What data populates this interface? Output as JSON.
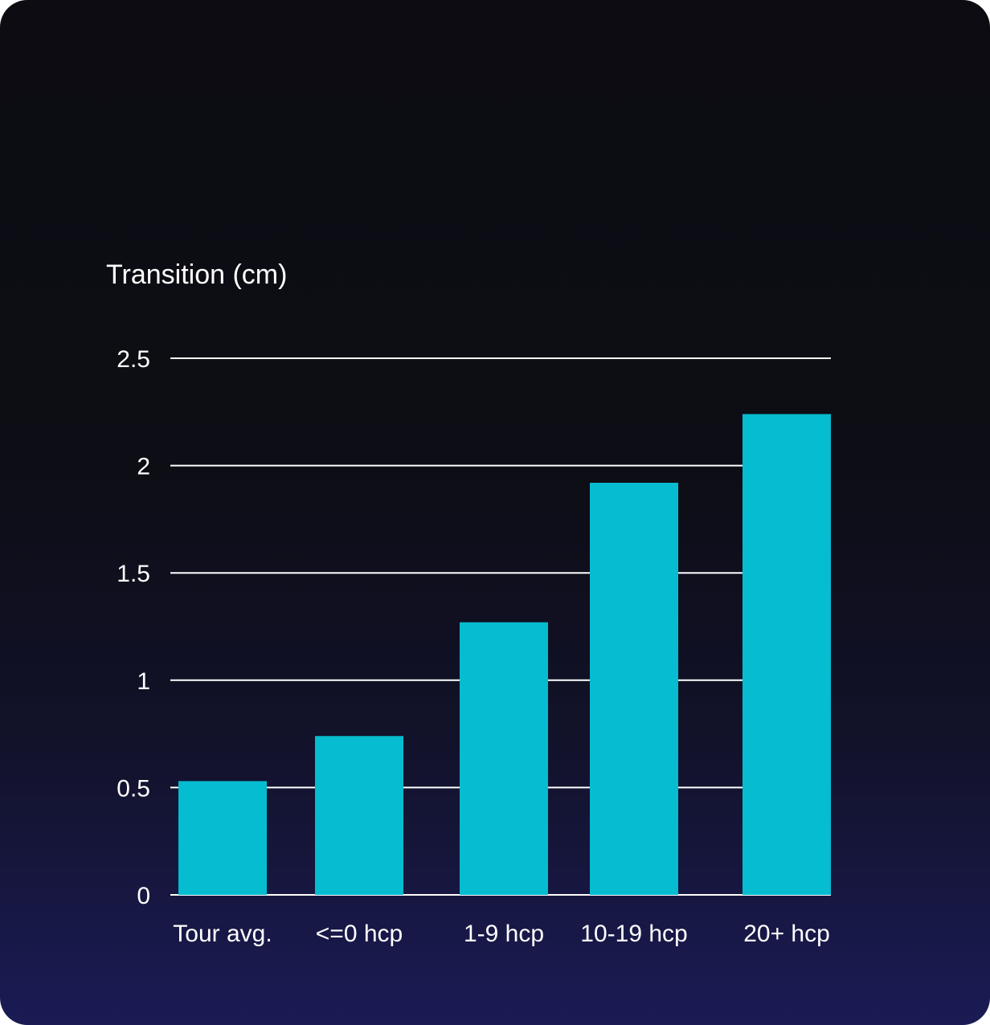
{
  "chart_data": {
    "type": "bar",
    "title": "",
    "xlabel": "",
    "ylabel": "Transition (cm)",
    "categories": [
      "Tour avg.",
      "<=0 hcp",
      "1-9 hcp",
      "10-19 hcp",
      "20+ hcp"
    ],
    "values": [
      0.53,
      0.74,
      1.27,
      1.92,
      2.24
    ],
    "ylim": [
      0,
      2.5
    ],
    "yticks": [
      "0",
      "0.5",
      "1",
      "1.5",
      "2",
      "2.5"
    ],
    "grid": true,
    "legend": "none",
    "colors": {
      "bar": "#06bcd0",
      "grid": "#ffffff",
      "text": "#ffffff"
    }
  }
}
